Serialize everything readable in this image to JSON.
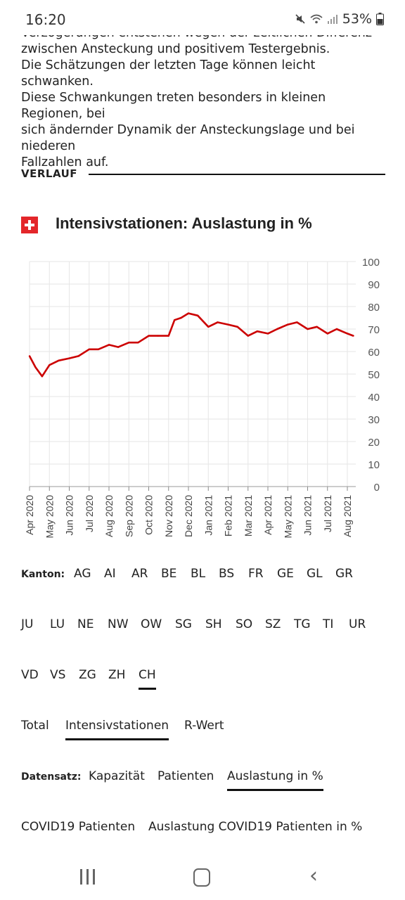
{
  "status_bar": {
    "time": "16:20",
    "battery": "53%"
  },
  "intro": {
    "partial_line": "Verzögerungen entstehen wegen der zeitlichen Differenz",
    "lines": [
      "zwischen Ansteckung und positivem Testergebnis.",
      "Die Schätzungen der letzten Tage können leicht schwanken.",
      "Diese Schwankungen treten besonders in kleinen Regionen, bei",
      "sich ändernder Dynamik der Ansteckungslage und bei niederen",
      "Fallzahlen auf."
    ]
  },
  "section": {
    "title": "VERLAUF"
  },
  "chart_data": {
    "type": "line",
    "title": "Intensivstationen: Auslastung in %",
    "ylim": [
      0,
      100
    ],
    "y_ticks": [
      "100",
      "90",
      "80",
      "70",
      "60",
      "50",
      "40",
      "30",
      "20",
      "10",
      "0"
    ],
    "x_ticks": [
      "Apr 2020",
      "May 2020",
      "Jun 2020",
      "Jul 2020",
      "Aug 2020",
      "Sep 2020",
      "Oct 2020",
      "Nov 2020",
      "Dec 2020",
      "Jan 2021",
      "Feb 2021",
      "Mar 2021",
      "Apr 2021",
      "May 2021",
      "Jun 2021",
      "Jul 2021",
      "Aug 2021"
    ],
    "series": [
      {
        "color": "#cc0000",
        "points": [
          [
            "2020-04-01",
            58
          ],
          [
            "2020-04-10",
            53
          ],
          [
            "2020-04-20",
            49
          ],
          [
            "2020-05-01",
            54
          ],
          [
            "2020-05-15",
            56
          ],
          [
            "2020-06-01",
            57
          ],
          [
            "2020-06-15",
            58
          ],
          [
            "2020-07-01",
            61
          ],
          [
            "2020-07-15",
            61
          ],
          [
            "2020-08-01",
            63
          ],
          [
            "2020-08-15",
            62
          ],
          [
            "2020-09-01",
            64
          ],
          [
            "2020-09-15",
            64
          ],
          [
            "2020-10-01",
            67
          ],
          [
            "2020-10-15",
            67
          ],
          [
            "2020-11-01",
            67
          ],
          [
            "2020-11-10",
            74
          ],
          [
            "2020-11-20",
            75
          ],
          [
            "2020-12-01",
            77
          ],
          [
            "2020-12-15",
            76
          ],
          [
            "2021-01-01",
            71
          ],
          [
            "2021-01-15",
            73
          ],
          [
            "2021-02-01",
            72
          ],
          [
            "2021-02-15",
            71
          ],
          [
            "2021-03-01",
            67
          ],
          [
            "2021-03-15",
            69
          ],
          [
            "2021-04-01",
            68
          ],
          [
            "2021-04-15",
            70
          ],
          [
            "2021-05-01",
            72
          ],
          [
            "2021-05-15",
            73
          ],
          [
            "2021-06-01",
            70
          ],
          [
            "2021-06-15",
            71
          ],
          [
            "2021-07-01",
            68
          ],
          [
            "2021-07-15",
            70
          ],
          [
            "2021-08-01",
            68
          ],
          [
            "2021-08-10",
            67
          ]
        ]
      }
    ]
  },
  "filters": {
    "kanton_label": "Kanton:",
    "kanton_row1": [
      "AG",
      "AI",
      "AR",
      "BE",
      "BL",
      "BS",
      "FR",
      "GE",
      "GL",
      "GR"
    ],
    "kanton_row2": [
      "JU",
      "LU",
      "NE",
      "NW",
      "OW",
      "SG",
      "SH",
      "SO",
      "SZ",
      "TG",
      "TI",
      "UR"
    ],
    "kanton_row3": [
      "VD",
      "VS",
      "ZG",
      "ZH",
      "CH"
    ],
    "kanton_active": "CH",
    "topic_tabs": [
      "Total",
      "Intensivstationen",
      "R-Wert"
    ],
    "topic_active": "Intensivstationen",
    "datensatz_label": "Datensatz:",
    "datensatz_options": [
      "Kapazität",
      "Patienten",
      "Auslastung in %"
    ],
    "datensatz_active": "Auslastung in %",
    "covid_options": [
      "COVID19 Patienten",
      "Auslastung COVID19 Patienten in %"
    ]
  },
  "icons": [
    "mute-icon",
    "wifi-icon",
    "signal-icon",
    "battery-icon",
    "swiss-flag-icon",
    "recents-icon",
    "home-icon",
    "back-icon"
  ]
}
